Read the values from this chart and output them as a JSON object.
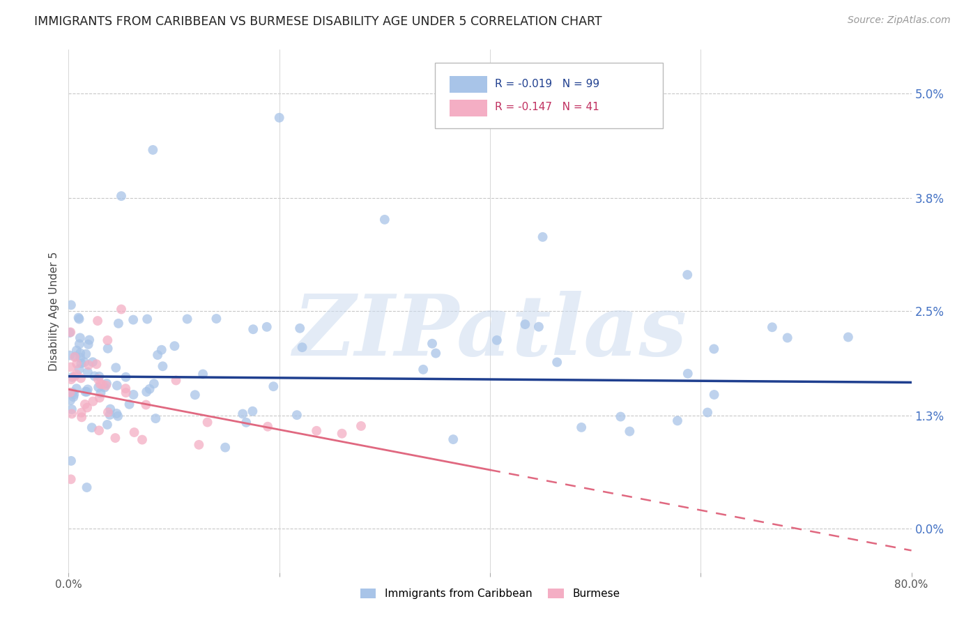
{
  "title": "IMMIGRANTS FROM CARIBBEAN VS BURMESE DISABILITY AGE UNDER 5 CORRELATION CHART",
  "source": "Source: ZipAtlas.com",
  "ylabel": "Disability Age Under 5",
  "ytick_values": [
    0.0,
    1.3,
    2.5,
    3.8,
    5.0
  ],
  "xmin": 0.0,
  "xmax": 80.0,
  "ymin": -0.5,
  "ymax": 5.5,
  "blue_color": "#a8c4e8",
  "pink_color": "#f4aec4",
  "blue_line_color": "#1f3f8f",
  "pink_line_color": "#e06880",
  "watermark_text": "ZIPatlas",
  "legend_blue_label": "R = -0.019   N = 99",
  "legend_pink_label": "R = -0.147   N = 41",
  "legend_blue_series": "Immigrants from Caribbean",
  "legend_pink_series": "Burmese",
  "blue_trend": [
    1.75,
    1.68
  ],
  "pink_trend_start": 1.6,
  "pink_trend_end": -0.25,
  "pink_solid_end_x": 40.0
}
